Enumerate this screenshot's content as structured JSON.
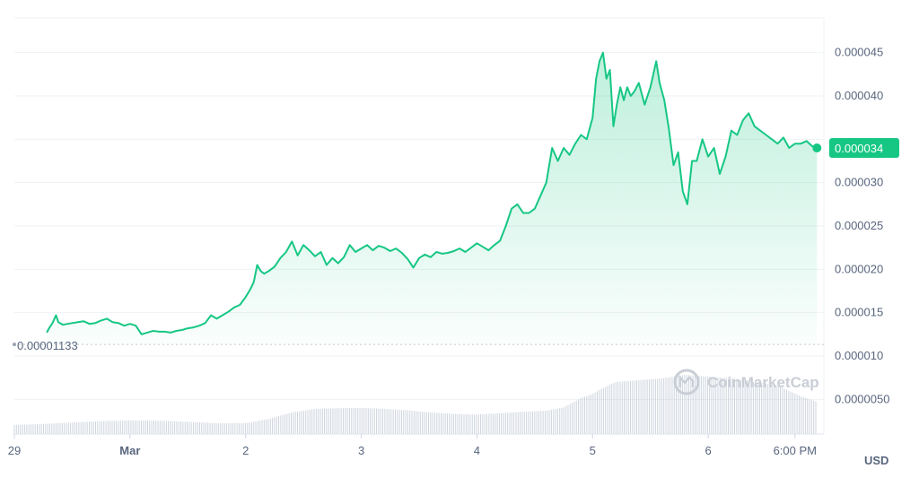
{
  "chart_data": {
    "type": "area",
    "title": "",
    "unit_label": "USD",
    "watermark": "CoinMarketCap",
    "baseline_label": "0.00001133",
    "baseline_value": 1.133e-05,
    "current_label": "0.000034",
    "current_value": 3.4e-05,
    "line_color": "#16c784",
    "volume_color": "#a6b0c3",
    "ylim": [
      1e-06,
      4.9e-05
    ],
    "y_ticks": [
      {
        "value": 5e-06,
        "label": "0.0000050"
      },
      {
        "value": 1e-05,
        "label": "0.000010"
      },
      {
        "value": 1.5e-05,
        "label": "0.000015"
      },
      {
        "value": 2e-05,
        "label": "0.000020"
      },
      {
        "value": 2.5e-05,
        "label": "0.000025"
      },
      {
        "value": 3e-05,
        "label": "0.000030"
      },
      {
        "value": 3.5e-05,
        "label": ""
      },
      {
        "value": 4e-05,
        "label": "0.000040"
      },
      {
        "value": 4.5e-05,
        "label": "0.000045"
      }
    ],
    "x_ticks": [
      {
        "t": 0.0,
        "label": "29",
        "bold": false
      },
      {
        "t": 1.0,
        "label": "Mar",
        "bold": true
      },
      {
        "t": 2.0,
        "label": "2",
        "bold": false
      },
      {
        "t": 3.0,
        "label": "3",
        "bold": false
      },
      {
        "t": 4.0,
        "label": "4",
        "bold": false
      },
      {
        "t": 5.0,
        "label": "5",
        "bold": false
      },
      {
        "t": 6.0,
        "label": "6",
        "bold": false
      },
      {
        "t": 6.75,
        "label": "6:00 PM",
        "bold": false
      }
    ],
    "xlim": [
      0.0,
      7.0
    ],
    "series": [
      {
        "x": [
          0.28,
          0.3,
          0.33,
          0.36,
          0.38,
          0.42,
          0.46,
          0.5,
          0.55,
          0.6,
          0.65,
          0.7,
          0.75,
          0.8,
          0.85,
          0.9,
          0.95,
          1.0,
          1.05,
          1.1,
          1.15,
          1.2,
          1.25,
          1.3,
          1.35,
          1.4,
          1.45,
          1.5,
          1.55,
          1.6,
          1.65,
          1.7,
          1.75,
          1.8,
          1.85,
          1.9,
          1.95,
          2.0,
          2.04,
          2.07,
          2.1,
          2.13,
          2.16,
          2.2,
          2.25,
          2.3,
          2.35,
          2.4,
          2.45,
          2.5,
          2.55,
          2.6,
          2.65,
          2.7,
          2.75,
          2.8,
          2.85,
          2.9,
          2.95,
          3.0,
          3.05,
          3.1,
          3.15,
          3.2,
          3.25,
          3.3,
          3.35,
          3.4,
          3.45,
          3.5,
          3.55,
          3.6,
          3.65,
          3.7,
          3.75,
          3.8,
          3.85,
          3.9,
          3.95,
          4.0,
          4.05,
          4.1,
          4.15,
          4.2,
          4.25,
          4.3,
          4.35,
          4.4,
          4.45,
          4.5,
          4.55,
          4.6,
          4.65,
          4.7,
          4.75,
          4.8,
          4.85,
          4.9,
          4.95,
          5.0,
          5.03,
          5.06,
          5.09,
          5.12,
          5.15,
          5.18,
          5.21,
          5.24,
          5.27,
          5.3,
          5.33,
          5.36,
          5.4,
          5.45,
          5.5,
          5.55,
          5.58,
          5.62,
          5.66,
          5.7,
          5.74,
          5.78,
          5.82,
          5.86,
          5.9,
          5.95,
          6.0,
          6.05,
          6.1,
          6.15,
          6.2,
          6.25,
          6.3,
          6.35,
          6.4,
          6.45,
          6.5,
          6.55,
          6.6,
          6.65,
          6.7,
          6.75,
          6.8,
          6.85,
          6.9,
          6.94
        ],
        "y": [
          1.27e-05,
          1.32e-05,
          1.38e-05,
          1.47e-05,
          1.39e-05,
          1.36e-05,
          1.37e-05,
          1.38e-05,
          1.39e-05,
          1.4e-05,
          1.37e-05,
          1.38e-05,
          1.41e-05,
          1.43e-05,
          1.39e-05,
          1.38e-05,
          1.35e-05,
          1.37e-05,
          1.35e-05,
          1.25e-05,
          1.27e-05,
          1.29e-05,
          1.28e-05,
          1.28e-05,
          1.27e-05,
          1.29e-05,
          1.3e-05,
          1.32e-05,
          1.33e-05,
          1.35e-05,
          1.38e-05,
          1.47e-05,
          1.43e-05,
          1.47e-05,
          1.51e-05,
          1.56e-05,
          1.59e-05,
          1.68e-05,
          1.77e-05,
          1.85e-05,
          2.05e-05,
          1.98e-05,
          1.95e-05,
          1.98e-05,
          2.03e-05,
          2.13e-05,
          2.2e-05,
          2.32e-05,
          2.16e-05,
          2.28e-05,
          2.22e-05,
          2.15e-05,
          2.2e-05,
          2.05e-05,
          2.13e-05,
          2.07e-05,
          2.14e-05,
          2.28e-05,
          2.2e-05,
          2.24e-05,
          2.28e-05,
          2.22e-05,
          2.27e-05,
          2.25e-05,
          2.21e-05,
          2.24e-05,
          2.19e-05,
          2.12e-05,
          2.02e-05,
          2.13e-05,
          2.17e-05,
          2.14e-05,
          2.2e-05,
          2.18e-05,
          2.19e-05,
          2.21e-05,
          2.24e-05,
          2.2e-05,
          2.25e-05,
          2.3e-05,
          2.26e-05,
          2.22e-05,
          2.28e-05,
          2.33e-05,
          2.5e-05,
          2.7e-05,
          2.75e-05,
          2.65e-05,
          2.65e-05,
          2.7e-05,
          2.85e-05,
          3e-05,
          3.4e-05,
          3.25e-05,
          3.4e-05,
          3.32e-05,
          3.45e-05,
          3.55e-05,
          3.5e-05,
          3.75e-05,
          4.2e-05,
          4.4e-05,
          4.5e-05,
          4.2e-05,
          4.3e-05,
          3.65e-05,
          3.9e-05,
          4.1e-05,
          3.95e-05,
          4.1e-05,
          4e-05,
          4.05e-05,
          4.15e-05,
          3.9e-05,
          4.1e-05,
          4.4e-05,
          4.15e-05,
          3.95e-05,
          3.62e-05,
          3.2e-05,
          3.35e-05,
          2.9e-05,
          2.75e-05,
          3.25e-05,
          3.25e-05,
          3.5e-05,
          3.3e-05,
          3.4e-05,
          3.1e-05,
          3.3e-05,
          3.6e-05,
          3.55e-05,
          3.72e-05,
          3.8e-05,
          3.65e-05,
          3.6e-05,
          3.55e-05,
          3.5e-05,
          3.45e-05,
          3.52e-05,
          3.4e-05,
          3.45e-05,
          3.45e-05,
          3.48e-05,
          3.42e-05,
          3.4e-05
        ]
      }
    ],
    "volume": {
      "x": [
        0.0,
        0.25,
        0.5,
        0.75,
        1.0,
        1.25,
        1.5,
        1.75,
        2.0,
        2.2,
        2.4,
        2.6,
        2.8,
        3.0,
        3.2,
        3.4,
        3.6,
        3.8,
        4.0,
        4.2,
        4.4,
        4.6,
        4.75,
        4.9,
        5.0,
        5.1,
        5.2,
        5.4,
        5.6,
        5.8,
        6.0,
        6.2,
        6.4,
        6.6,
        6.8,
        6.94
      ],
      "y": [
        0.25,
        0.28,
        0.32,
        0.36,
        0.38,
        0.37,
        0.34,
        0.3,
        0.3,
        0.42,
        0.6,
        0.7,
        0.72,
        0.73,
        0.7,
        0.66,
        0.6,
        0.56,
        0.54,
        0.58,
        0.62,
        0.65,
        0.74,
        1.0,
        1.12,
        1.3,
        1.45,
        1.5,
        1.55,
        1.65,
        1.6,
        1.55,
        1.45,
        1.35,
        1.05,
        0.9
      ]
    }
  }
}
